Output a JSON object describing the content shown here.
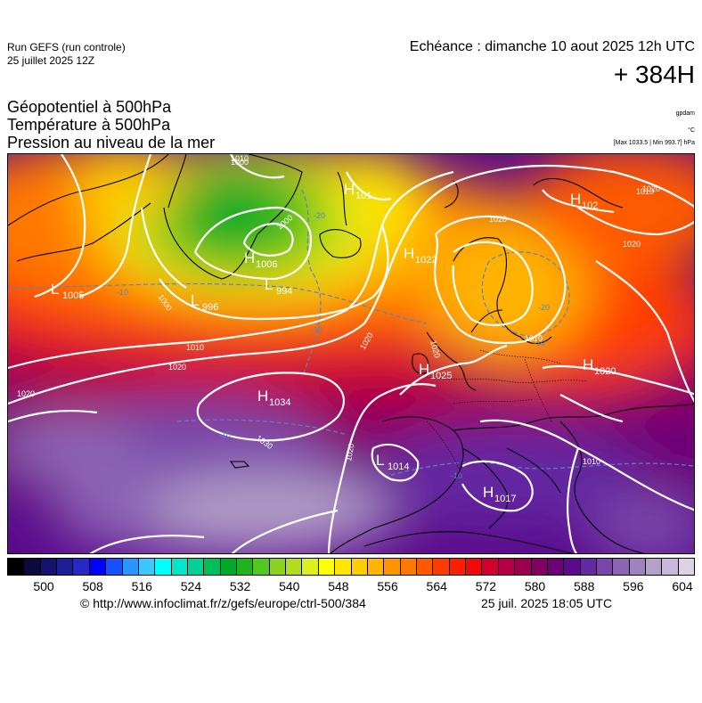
{
  "header": {
    "run_line1": "Run GEFS (run controle)",
    "run_line2": "25 juillet 2025 12Z",
    "valid_time": "Echéance : dimanche 10 aout 2025 12h UTC",
    "lead_time": "+ 384H"
  },
  "parameters": {
    "line1": "Géopotentiel à 500hPa",
    "line2": "Température à 500hPa",
    "line3": "Pression au niveau de la mer",
    "unit_geo": "gpdam",
    "unit_temp": "°C",
    "unit_pres": "[Max 1033.5 | Min 993.7] hPa"
  },
  "pressure_centers": [
    {
      "type": "H",
      "value": "1006"
    },
    {
      "type": "L",
      "value": "994"
    },
    {
      "type": "L",
      "value": "996"
    },
    {
      "type": "L",
      "value": "1005"
    },
    {
      "type": "H",
      "value": "1034"
    },
    {
      "type": "H",
      "value": "1022"
    },
    {
      "type": "H",
      "value": "1025"
    },
    {
      "type": "H",
      "value": "1020"
    },
    {
      "type": "H",
      "value": "1017"
    },
    {
      "type": "L",
      "value": "1014"
    },
    {
      "type": "H",
      "value": "101"
    },
    {
      "type": "H",
      "value": "102"
    }
  ],
  "isobar_labels": [
    "1000",
    "1000",
    "1000",
    "1010",
    "1010",
    "1020",
    "1020",
    "1020",
    "1020",
    "1020",
    "1020",
    "1010",
    "1020",
    "1030",
    "1010",
    "1020",
    "1010"
  ],
  "temp_labels": [
    "-20",
    "-10",
    "-10",
    "-20",
    "-10",
    "-10",
    "-10"
  ],
  "colorbar": {
    "colors": [
      "#000000",
      "#0a0a3c",
      "#14146e",
      "#1e1e96",
      "#2828c8",
      "#0000ff",
      "#1450ff",
      "#2896ff",
      "#3cc8ff",
      "#00ffff",
      "#00e6c8",
      "#00d296",
      "#00be5a",
      "#00aa28",
      "#1eb41e",
      "#50c81e",
      "#8cd21e",
      "#b4dc1e",
      "#dcf01e",
      "#ffff00",
      "#ffe600",
      "#ffcc00",
      "#ffb400",
      "#ff9600",
      "#ff7800",
      "#ff5a00",
      "#ff3c00",
      "#ff1e00",
      "#f00a0a",
      "#d2002d",
      "#b40046",
      "#9b0050",
      "#820064",
      "#6e0078",
      "#5a0a8c",
      "#6428a0",
      "#7846aa",
      "#8c64b4",
      "#a082be",
      "#b4a0c8",
      "#c8b9dc",
      "#dcd2e6"
    ],
    "ticks": [
      "500",
      "508",
      "516",
      "524",
      "532",
      "540",
      "548",
      "556",
      "564",
      "572",
      "580",
      "588",
      "596",
      "604"
    ]
  },
  "footer": {
    "url": "© http://www.infoclimat.fr/z/gefs/europe/ctrl-500/384",
    "generated": "25 juil. 2025 18:05 UTC"
  }
}
